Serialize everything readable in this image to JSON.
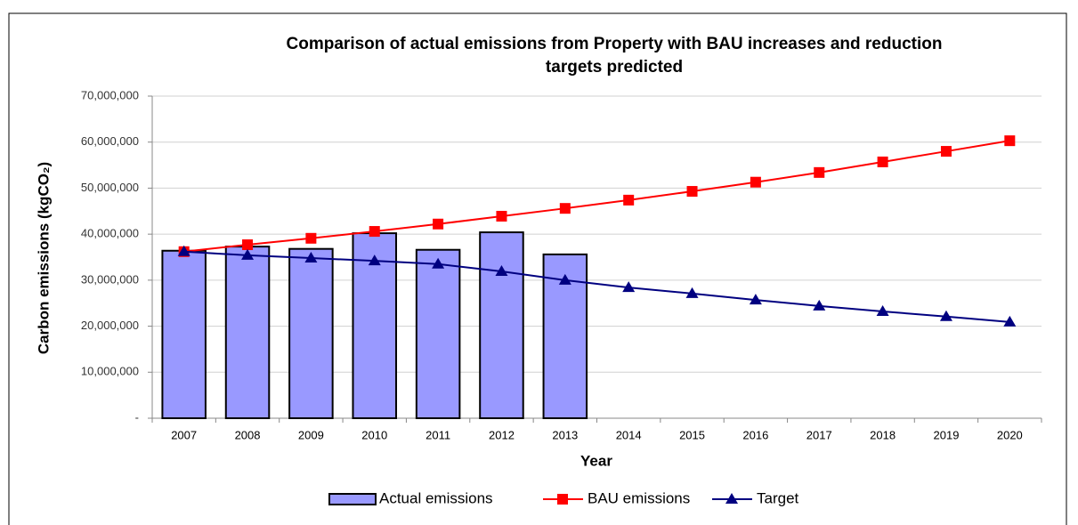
{
  "chart_data": {
    "type": "bar",
    "title": [
      "Comparison of actual emissions from Property with BAU increases and reduction",
      "targets predicted"
    ],
    "x_label": "Year",
    "y_label": "Carbon emissions (kgCO₂)",
    "categories": [
      "2007",
      "2008",
      "2009",
      "2010",
      "2011",
      "2012",
      "2013",
      "2014",
      "2015",
      "2016",
      "2017",
      "2018",
      "2019",
      "2020"
    ],
    "series": [
      {
        "name": "Actual emissions",
        "type": "bar",
        "color": "#9999ff",
        "values": [
          36400000,
          37300000,
          36800000,
          40200000,
          36600000,
          40400000,
          35600000,
          null,
          null,
          null,
          null,
          null,
          null,
          null
        ]
      },
      {
        "name": "BAU emissions",
        "type": "line",
        "marker": "square",
        "color": "#ff0000",
        "values": [
          36200000,
          37700000,
          39100000,
          40600000,
          42200000,
          43900000,
          45600000,
          47400000,
          49300000,
          51300000,
          53400000,
          55700000,
          58000000,
          60300000
        ]
      },
      {
        "name": "Target",
        "type": "line",
        "marker": "triangle",
        "color": "#000080",
        "values": [
          36200000,
          35400000,
          34800000,
          34200000,
          33500000,
          31900000,
          30000000,
          28400000,
          27100000,
          25700000,
          24400000,
          23200000,
          22100000,
          20900000
        ]
      }
    ],
    "ylim": [
      0,
      70000000
    ],
    "yticks": [
      {
        "value": 0,
        "label": "-"
      },
      {
        "value": 10000000,
        "label": "10,000,000"
      },
      {
        "value": 20000000,
        "label": "20,000,000"
      },
      {
        "value": 30000000,
        "label": "30,000,000"
      },
      {
        "value": 40000000,
        "label": "40,000,000"
      },
      {
        "value": 50000000,
        "label": "50,000,000"
      },
      {
        "value": 60000000,
        "label": "60,000,000"
      },
      {
        "value": 70000000,
        "label": "70,000,000"
      }
    ],
    "grid": true,
    "legend": "bottom"
  }
}
